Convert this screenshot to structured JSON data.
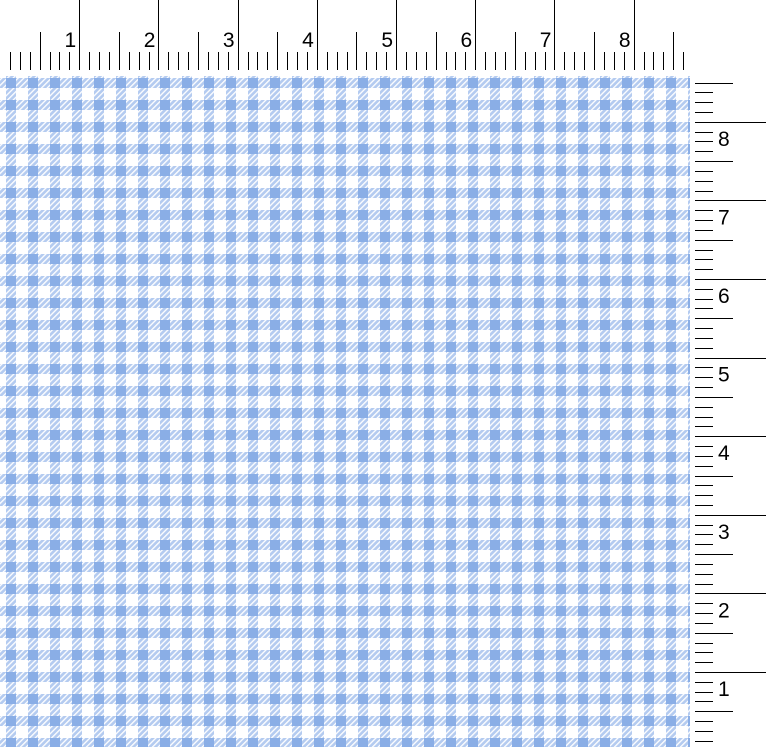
{
  "rulers": {
    "top": {
      "labels": [
        "1",
        "2",
        "3",
        "4",
        "5",
        "6",
        "7",
        "8"
      ],
      "unit": "inch",
      "subdivisions": 8
    },
    "right": {
      "labels": [
        "1",
        "2",
        "3",
        "4",
        "5",
        "6",
        "7",
        "8"
      ],
      "unit": "inch",
      "subdivisions": 8
    }
  },
  "pattern": {
    "type": "gingham",
    "colors": {
      "solid": "#8aaee6",
      "hatched": "#b4cbf0",
      "background": "#ffffff",
      "hatch_line": "#ffffff"
    }
  }
}
